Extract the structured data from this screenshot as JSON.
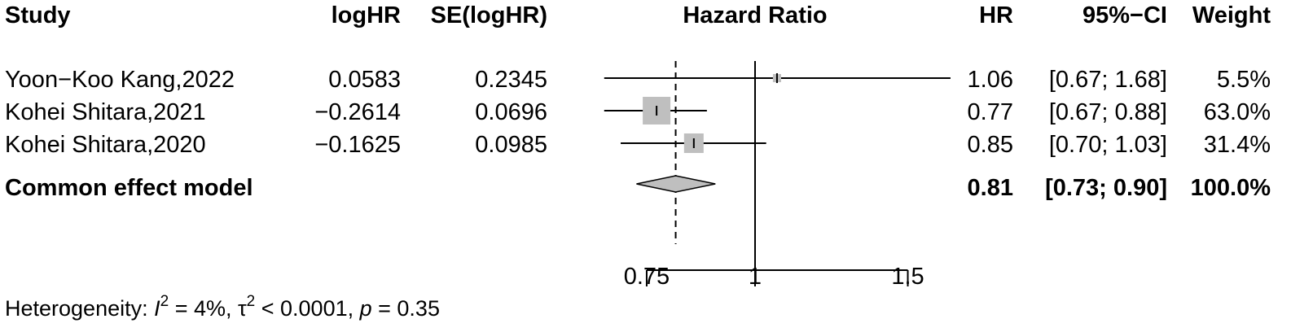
{
  "chart_data": {
    "type": "forest",
    "headers": {
      "study": "Study",
      "loghr": "logHR",
      "se": "SE(logHR)",
      "plot": "Hazard Ratio",
      "hr": "HR",
      "ci": "95%−CI",
      "weight": "Weight"
    },
    "studies": [
      {
        "study": "Yoon−Koo Kang,2022",
        "loghr": "0.0583",
        "se": "0.2345",
        "hr": 1.06,
        "lower": 0.67,
        "upper": 1.68,
        "hr_text": "1.06",
        "ci_text": "[0.67; 1.68]",
        "weight": 5.5,
        "weight_text": "5.5%"
      },
      {
        "study": "Kohei Shitara,2021",
        "loghr": "−0.2614",
        "se": "0.0696",
        "hr": 0.77,
        "lower": 0.67,
        "upper": 0.88,
        "hr_text": "0.77",
        "ci_text": "[0.67; 0.88]",
        "weight": 63.0,
        "weight_text": "63.0%"
      },
      {
        "study": "Kohei Shitara,2020",
        "loghr": "−0.1625",
        "se": "0.0985",
        "hr": 0.85,
        "lower": 0.7,
        "upper": 1.03,
        "hr_text": "0.85",
        "ci_text": "[0.70; 1.03]",
        "weight": 31.4,
        "weight_text": "31.4%"
      }
    ],
    "pooled": {
      "label": "Common effect model",
      "hr": 0.81,
      "lower": 0.73,
      "upper": 0.9,
      "hr_text": "0.81",
      "ci_text": "[0.73; 0.90]",
      "weight_text": "100.0%"
    },
    "axis": {
      "scale": "log",
      "ticks": [
        0.75,
        1,
        1.5
      ],
      "tick_labels": [
        "0.75",
        "1",
        "1.5"
      ],
      "xlim": [
        0.72,
        1.55
      ],
      "reference_line": 1
    },
    "heterogeneity": {
      "prefix": "Heterogeneity: ",
      "i2_symbol": "I",
      "i2_value": " = 4%, ",
      "tau_symbol": "τ",
      "tau_value": " < 0.0001, ",
      "p_symbol": "p",
      "p_value": " = 0.35"
    },
    "colors": {
      "square": "#bfbfbf",
      "diamond": "#bfbfbf",
      "line": "#000000"
    }
  }
}
